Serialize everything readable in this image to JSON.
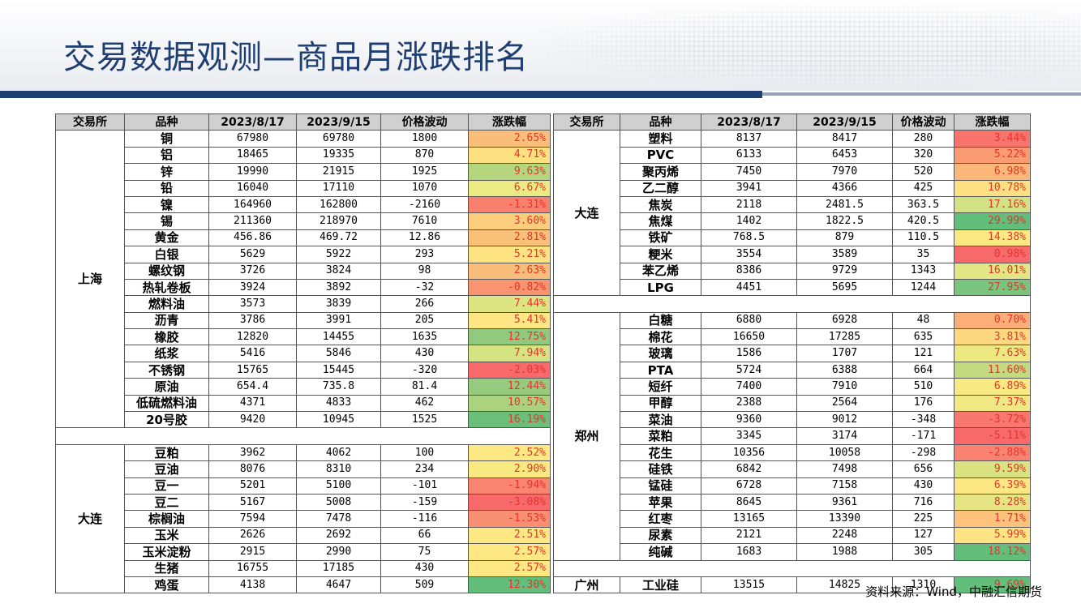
{
  "title": "交易数据观测—商品月涨跌排名",
  "source": "资料来源：Wind，中融汇信期货",
  "headers": [
    "交易所",
    "品种",
    "2023/8/17",
    "2023/9/15",
    "价格波动",
    "涨跌幅"
  ],
  "left_blocks": [
    {
      "exchange": "上海",
      "rows": [
        [
          "铜",
          "67980",
          "69780",
          "1800",
          "2.65%",
          "#f8be7a"
        ],
        [
          "铝",
          "18465",
          "19335",
          "870",
          "4.71%",
          "#fde07f"
        ],
        [
          "锌",
          "19990",
          "21915",
          "1925",
          "9.63%",
          "#b5d57f"
        ],
        [
          "铅",
          "16040",
          "17110",
          "1070",
          "6.67%",
          "#ecea83"
        ],
        [
          "镍",
          "164960",
          "162800",
          "-2160",
          "-1.31%",
          "#f8806d"
        ],
        [
          "锡",
          "211360",
          "218970",
          "7610",
          "3.60%",
          "#fbcd7d"
        ],
        [
          "黄金",
          "456.86",
          "469.72",
          "12.86",
          "2.81%",
          "#f9c07a"
        ],
        [
          "白银",
          "5629",
          "5922",
          "293",
          "5.21%",
          "#fee382"
        ],
        [
          "螺纹钢",
          "3726",
          "3824",
          "98",
          "2.63%",
          "#f8bd7a"
        ],
        [
          "热轧卷板",
          "3924",
          "3892",
          "-32",
          "-0.82%",
          "#f8946f"
        ],
        [
          "燃料油",
          "3573",
          "3839",
          "266",
          "7.44%",
          "#dde583"
        ],
        [
          "沥青",
          "3786",
          "3991",
          "205",
          "5.41%",
          "#fde683"
        ],
        [
          "橡胶",
          "12820",
          "14455",
          "1635",
          "12.75%",
          "#91c97e"
        ],
        [
          "纸浆",
          "5416",
          "5846",
          "430",
          "7.94%",
          "#d6e382"
        ],
        [
          "不锈钢",
          "15765",
          "15445",
          "-320",
          "-2.03%",
          "#f8696b"
        ],
        [
          "原油",
          "654.4",
          "735.8",
          "81.4",
          "12.44%",
          "#96cb7f"
        ],
        [
          "低硫燃料油",
          "4371",
          "4833",
          "462",
          "10.57%",
          "#aad27f"
        ],
        [
          "20号胶",
          "9420",
          "10945",
          "1525",
          "16.19%",
          "#6cbe7b"
        ]
      ]
    },
    {
      "exchange": "大连",
      "rows": [
        [
          "豆粕",
          "3962",
          "4062",
          "100",
          "2.52%",
          "#fde883"
        ],
        [
          "豆油",
          "8076",
          "8310",
          "234",
          "2.90%",
          "#f9e983"
        ],
        [
          "豆一",
          "5201",
          "5100",
          "-101",
          "-1.94%",
          "#f98470"
        ],
        [
          "豆二",
          "5167",
          "5008",
          "-159",
          "-3.08%",
          "#f8696b"
        ],
        [
          "棕榈油",
          "7594",
          "7478",
          "-116",
          "-1.53%",
          "#f98f72"
        ],
        [
          "玉米",
          "2626",
          "2692",
          "66",
          "2.51%",
          "#fde883"
        ],
        [
          "玉米淀粉",
          "2915",
          "2990",
          "75",
          "2.57%",
          "#fde883"
        ],
        [
          "生猪",
          "16755",
          "17185",
          "430",
          "2.57%",
          "#fde883"
        ],
        [
          "鸡蛋",
          "4138",
          "4647",
          "509",
          "12.30%",
          "#63be7b"
        ]
      ]
    }
  ],
  "right_blocks": [
    {
      "exchange": "大连",
      "rows": [
        [
          "塑料",
          "8137",
          "8417",
          "280",
          "3.44%",
          "#f8746d"
        ],
        [
          "PVC",
          "6133",
          "6453",
          "320",
          "5.22%",
          "#fa9b74"
        ],
        [
          "聚丙烯",
          "7450",
          "7970",
          "520",
          "6.98%",
          "#fbb679"
        ],
        [
          "乙二醇",
          "3941",
          "4366",
          "425",
          "10.78%",
          "#fee082"
        ],
        [
          "焦炭",
          "2118",
          "2481.5",
          "363.5",
          "17.16%",
          "#d3e282"
        ],
        [
          "焦煤",
          "1402",
          "1822.5",
          "420.5",
          "29.99%",
          "#63be7b"
        ],
        [
          "铁矿",
          "768.5",
          "879",
          "110.5",
          "14.38%",
          "#fbe983"
        ],
        [
          "粳米",
          "3554",
          "3589",
          "35",
          "0.98%",
          "#f8696b"
        ],
        [
          "苯乙烯",
          "8386",
          "9729",
          "1343",
          "16.01%",
          "#e3e783"
        ],
        [
          "LPG",
          "4451",
          "5695",
          "1244",
          "27.95%",
          "#7ac57d"
        ]
      ]
    },
    {
      "exchange": "郑州",
      "rows": [
        [
          "白糖",
          "6880",
          "6928",
          "48",
          "0.70%",
          "#fbae78"
        ],
        [
          "棉花",
          "16650",
          "17285",
          "635",
          "3.81%",
          "#fed880"
        ],
        [
          "玻璃",
          "1586",
          "1707",
          "121",
          "7.63%",
          "#ece983"
        ],
        [
          "PTA",
          "5724",
          "6388",
          "664",
          "11.60%",
          "#c3da80"
        ],
        [
          "短纤",
          "7400",
          "7910",
          "510",
          "6.89%",
          "#f8e983"
        ],
        [
          "甲醇",
          "2388",
          "2564",
          "176",
          "7.37%",
          "#f0e983"
        ],
        [
          "菜油",
          "9360",
          "9012",
          "-348",
          "-3.72%",
          "#f8776e"
        ],
        [
          "菜粕",
          "3345",
          "3174",
          "-171",
          "-5.11%",
          "#f8696b"
        ],
        [
          "花生",
          "10356",
          "10058",
          "-298",
          "-2.88%",
          "#f98370"
        ],
        [
          "硅铁",
          "6842",
          "7498",
          "656",
          "9.59%",
          "#d9e382"
        ],
        [
          "锰硅",
          "6728",
          "7158",
          "430",
          "6.39%",
          "#fde783"
        ],
        [
          "苹果",
          "8645",
          "9361",
          "716",
          "8.28%",
          "#e5e683"
        ],
        [
          "红枣",
          "13165",
          "13390",
          "225",
          "1.71%",
          "#fdc27c"
        ],
        [
          "尿素",
          "2121",
          "2248",
          "127",
          "5.99%",
          "#fee483"
        ],
        [
          "纯碱",
          "1683",
          "1988",
          "305",
          "18.12%",
          "#63be7b"
        ]
      ]
    },
    {
      "exchange": "广州",
      "rows": [
        [
          "工业硅",
          "13515",
          "14825",
          "1310",
          "9.69%",
          "#63be7b"
        ]
      ]
    }
  ]
}
